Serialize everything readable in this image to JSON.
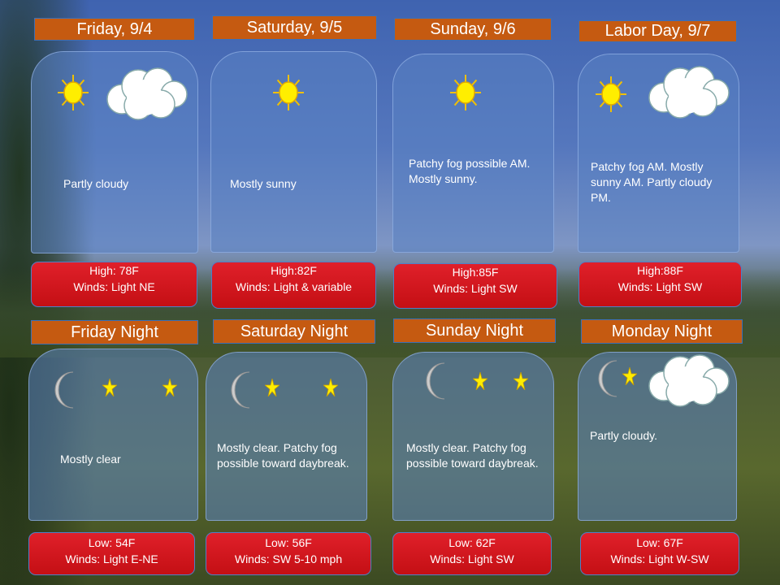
{
  "colors": {
    "header": "#c55a11",
    "temp_box": "#d0161c",
    "card": "#5a82c3"
  },
  "day": [
    {
      "title": "Friday, 9/4",
      "desc": "Partly cloudy",
      "temp": "High: 78F",
      "winds": "Winds: Light NE",
      "icons": [
        "sun-icon",
        "cloud-icon"
      ]
    },
    {
      "title": "Saturday, 9/5",
      "desc": "Mostly sunny",
      "temp": "High:82F",
      "winds": "Winds: Light & variable",
      "icons": [
        "sun-icon"
      ]
    },
    {
      "title": "Sunday, 9/6",
      "desc": "Patchy fog possible AM. Mostly sunny.",
      "temp": "High:85F",
      "winds": "Winds: Light SW",
      "icons": [
        "sun-icon"
      ]
    },
    {
      "title": "Labor Day, 9/7",
      "desc": "Patchy fog AM. Mostly sunny AM. Partly cloudy PM.",
      "temp": "High:88F",
      "winds": "Winds: Light SW",
      "icons": [
        "sun-icon",
        "cloud-icon"
      ]
    }
  ],
  "night": [
    {
      "title": "Friday Night",
      "desc": "Mostly clear",
      "temp": "Low: 54F",
      "winds": "Winds: Light E-NE",
      "icons": [
        "moon-icon",
        "star-icon",
        "star-icon"
      ]
    },
    {
      "title": "Saturday Night",
      "desc": "Mostly clear. Patchy fog possible toward daybreak.",
      "temp": "Low: 56F",
      "winds": "Winds: SW 5-10 mph",
      "icons": [
        "moon-icon",
        "star-icon",
        "star-icon"
      ]
    },
    {
      "title": "Sunday Night",
      "desc": "Mostly clear. Patchy fog possible toward daybreak.",
      "temp": "Low: 62F",
      "winds": "Winds: Light SW",
      "icons": [
        "moon-icon",
        "star-icon",
        "star-icon"
      ]
    },
    {
      "title": "Monday Night",
      "desc": "Partly cloudy.",
      "temp": "Low: 67F",
      "winds": "Winds: Light W-SW",
      "icons": [
        "moon-icon",
        "star-icon",
        "cloud-icon"
      ]
    }
  ]
}
